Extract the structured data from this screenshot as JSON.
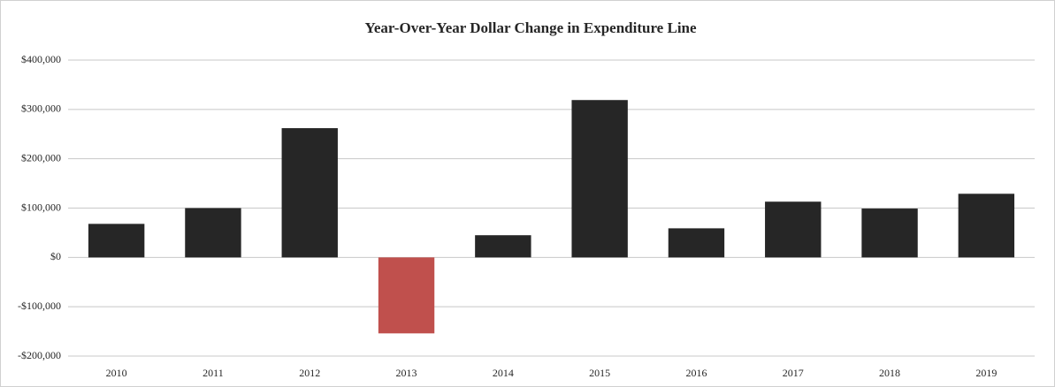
{
  "chart_data": {
    "type": "bar",
    "title": "Year-Over-Year Dollar Change in Expenditure Line",
    "categories": [
      "2010",
      "2011",
      "2012",
      "2013",
      "2014",
      "2015",
      "2016",
      "2017",
      "2018",
      "2019"
    ],
    "values": [
      68000,
      100000,
      262000,
      -154000,
      45000,
      319000,
      59000,
      113000,
      99000,
      129000
    ],
    "colors": [
      "#262626",
      "#262626",
      "#262626",
      "#c0504d",
      "#262626",
      "#262626",
      "#262626",
      "#262626",
      "#262626",
      "#262626"
    ],
    "ylim": [
      -200000,
      400000
    ],
    "yticks": [
      {
        "value": -200000,
        "label": "-$200,000"
      },
      {
        "value": -100000,
        "label": "-$100,000"
      },
      {
        "value": 0,
        "label": "$0"
      },
      {
        "value": 100000,
        "label": "$100,000"
      },
      {
        "value": 200000,
        "label": "$200,000"
      },
      {
        "value": 300000,
        "label": "$300,000"
      },
      {
        "value": 400000,
        "label": "$400,000"
      }
    ],
    "grid": true
  }
}
